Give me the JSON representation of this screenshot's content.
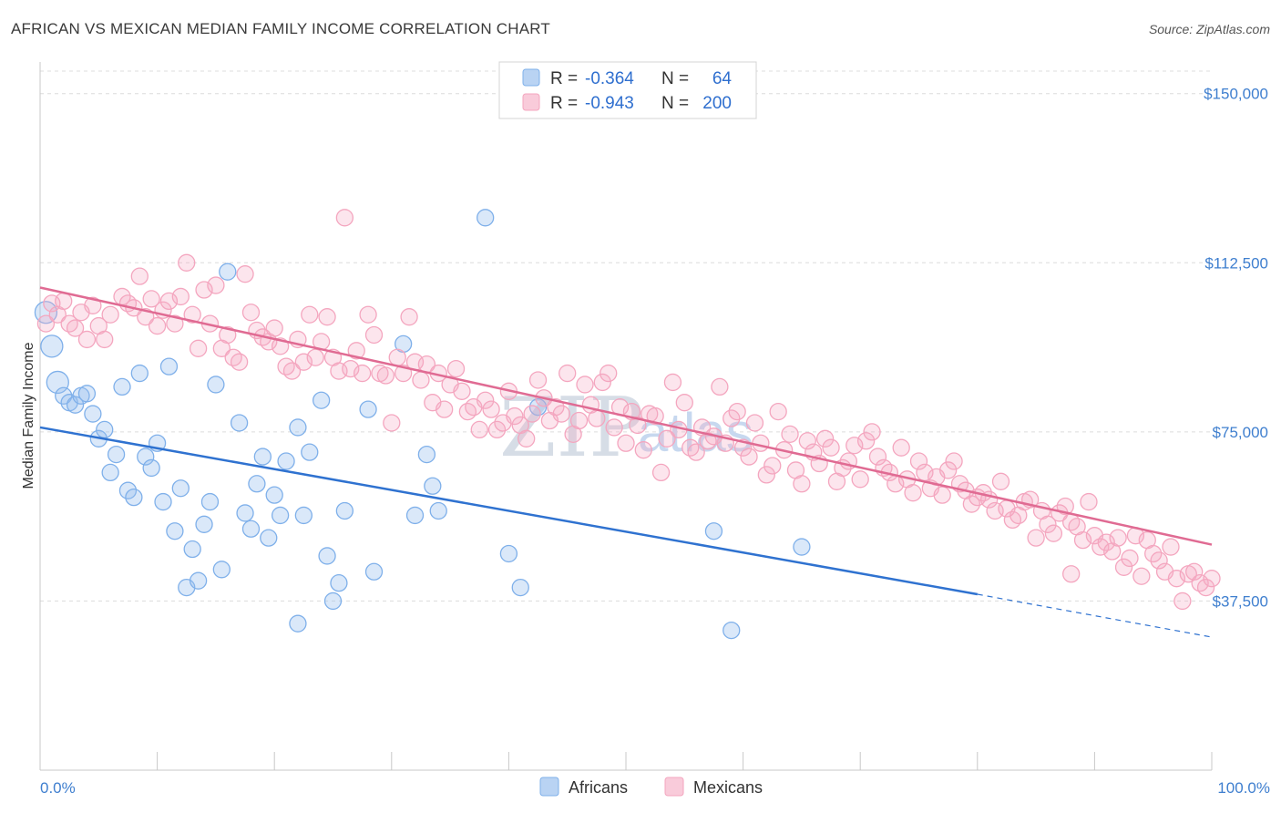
{
  "title": "AFRICAN VS MEXICAN MEDIAN FAMILY INCOME CORRELATION CHART",
  "source": "Source: ZipAtlas.com",
  "watermark": {
    "zip": "ZIP",
    "atlas": "atlas"
  },
  "legend": {
    "rows": [
      {
        "r_label": "R =",
        "r_value": "-0.364",
        "n_label": "N =",
        "n_value": "64",
        "color": "#7fb0ea"
      },
      {
        "r_label": "R =",
        "r_value": "-0.943",
        "n_label": "N =",
        "n_value": "200",
        "color": "#f4a6bf"
      }
    ]
  },
  "chart_data": {
    "type": "scatter",
    "xlabel": "",
    "ylabel": "Median Family Income",
    "xlim": [
      0,
      100
    ],
    "ylim": [
      0,
      155000
    ],
    "x_tick_labels": [
      "0.0%",
      "100.0%"
    ],
    "y_ticks": [
      37500,
      75000,
      112500,
      150000
    ],
    "y_tick_labels": [
      "$37,500",
      "$75,000",
      "$112,500",
      "$150,000"
    ],
    "grid": true,
    "legend_position": "top-center",
    "series": [
      {
        "name": "Africans",
        "color": "#7fb0ea",
        "line_color": "#2f72d0",
        "trend": {
          "x0": 0,
          "y0": 76000,
          "x1": 80,
          "y1": 39000,
          "dash_to_x": 100,
          "dash_to_y": 29500
        },
        "points": [
          [
            0.5,
            101500
          ],
          [
            1,
            94000
          ],
          [
            1.5,
            86000
          ],
          [
            2,
            83000
          ],
          [
            2.5,
            81500
          ],
          [
            3,
            81000
          ],
          [
            3.5,
            83000
          ],
          [
            4,
            83500
          ],
          [
            4.5,
            79000
          ],
          [
            5,
            73500
          ],
          [
            5.5,
            75500
          ],
          [
            6,
            66000
          ],
          [
            6.5,
            70000
          ],
          [
            7,
            85000
          ],
          [
            7.5,
            62000
          ],
          [
            8,
            60500
          ],
          [
            8.5,
            88000
          ],
          [
            9,
            69500
          ],
          [
            9.5,
            67000
          ],
          [
            10,
            72500
          ],
          [
            10.5,
            59500
          ],
          [
            11,
            89500
          ],
          [
            11.5,
            53000
          ],
          [
            12,
            62500
          ],
          [
            12.5,
            40500
          ],
          [
            13,
            49000
          ],
          [
            13.5,
            42000
          ],
          [
            14,
            54500
          ],
          [
            14.5,
            59500
          ],
          [
            15,
            85500
          ],
          [
            15.5,
            44500
          ],
          [
            16,
            110500
          ],
          [
            17,
            77000
          ],
          [
            17.5,
            57000
          ],
          [
            18,
            53500
          ],
          [
            18.5,
            63500
          ],
          [
            19,
            69500
          ],
          [
            19.5,
            51500
          ],
          [
            20,
            61000
          ],
          [
            20.5,
            56500
          ],
          [
            21,
            68500
          ],
          [
            22,
            76000
          ],
          [
            22.5,
            56500
          ],
          [
            23,
            70500
          ],
          [
            24,
            82000
          ],
          [
            24.5,
            47500
          ],
          [
            25,
            37500
          ],
          [
            25.5,
            41500
          ],
          [
            26,
            57500
          ],
          [
            28,
            80000
          ],
          [
            28.5,
            44000
          ],
          [
            31,
            94500
          ],
          [
            32,
            56500
          ],
          [
            33,
            70000
          ],
          [
            33.5,
            63000
          ],
          [
            34,
            57500
          ],
          [
            38,
            122500
          ],
          [
            40,
            48000
          ],
          [
            41,
            40500
          ],
          [
            42.5,
            80500
          ],
          [
            22,
            32500
          ],
          [
            57.5,
            53000
          ],
          [
            59,
            31000
          ],
          [
            65,
            49500
          ]
        ]
      },
      {
        "name": "Mexicans",
        "color": "#f4a6bf",
        "line_color": "#e06b93",
        "trend": {
          "x0": 0,
          "y0": 107000,
          "x1": 100,
          "y1": 50000
        },
        "points": [
          [
            0.5,
            99000
          ],
          [
            1,
            103500
          ],
          [
            1.5,
            101000
          ],
          [
            2,
            104000
          ],
          [
            2.5,
            99000
          ],
          [
            3,
            98000
          ],
          [
            3.5,
            101500
          ],
          [
            4,
            95500
          ],
          [
            4.5,
            103000
          ],
          [
            5,
            98500
          ],
          [
            5.5,
            95500
          ],
          [
            6,
            101000
          ],
          [
            7,
            105000
          ],
          [
            7.5,
            103500
          ],
          [
            8,
            102500
          ],
          [
            8.5,
            109500
          ],
          [
            9,
            100500
          ],
          [
            9.5,
            104500
          ],
          [
            10,
            98500
          ],
          [
            10.5,
            102000
          ],
          [
            11,
            104000
          ],
          [
            11.5,
            99000
          ],
          [
            12,
            105000
          ],
          [
            12.5,
            112500
          ],
          [
            13,
            101000
          ],
          [
            13.5,
            93500
          ],
          [
            14,
            106500
          ],
          [
            14.5,
            99000
          ],
          [
            15,
            107500
          ],
          [
            15.5,
            93500
          ],
          [
            16,
            96500
          ],
          [
            16.5,
            91500
          ],
          [
            17,
            90500
          ],
          [
            17.5,
            110000
          ],
          [
            18,
            101500
          ],
          [
            18.5,
            97500
          ],
          [
            19,
            96000
          ],
          [
            19.5,
            95000
          ],
          [
            20,
            98000
          ],
          [
            20.5,
            94000
          ],
          [
            21,
            89500
          ],
          [
            21.5,
            88500
          ],
          [
            22,
            95500
          ],
          [
            22.5,
            90500
          ],
          [
            23,
            101000
          ],
          [
            23.5,
            91500
          ],
          [
            24,
            95000
          ],
          [
            24.5,
            100500
          ],
          [
            25,
            91500
          ],
          [
            25.5,
            88500
          ],
          [
            26,
            122500
          ],
          [
            26.5,
            89000
          ],
          [
            27,
            93000
          ],
          [
            27.5,
            88000
          ],
          [
            28,
            101000
          ],
          [
            28.5,
            96500
          ],
          [
            29,
            88000
          ],
          [
            29.5,
            87500
          ],
          [
            30,
            77000
          ],
          [
            30.5,
            91500
          ],
          [
            31,
            88000
          ],
          [
            31.5,
            100500
          ],
          [
            32,
            90500
          ],
          [
            32.5,
            86500
          ],
          [
            33,
            90000
          ],
          [
            33.5,
            81500
          ],
          [
            34,
            88000
          ],
          [
            34.5,
            80000
          ],
          [
            35,
            85500
          ],
          [
            35.5,
            89000
          ],
          [
            36,
            84000
          ],
          [
            36.5,
            79500
          ],
          [
            37,
            80500
          ],
          [
            37.5,
            75500
          ],
          [
            38,
            82000
          ],
          [
            38.5,
            80000
          ],
          [
            39,
            75500
          ],
          [
            39.5,
            77000
          ],
          [
            40,
            84000
          ],
          [
            40.5,
            78500
          ],
          [
            41,
            76500
          ],
          [
            41.5,
            73500
          ],
          [
            42,
            79000
          ],
          [
            42.5,
            86500
          ],
          [
            43,
            82500
          ],
          [
            43.5,
            77500
          ],
          [
            44,
            80500
          ],
          [
            44.5,
            79000
          ],
          [
            45,
            88000
          ],
          [
            45.5,
            74500
          ],
          [
            46,
            77500
          ],
          [
            46.5,
            85500
          ],
          [
            47,
            81000
          ],
          [
            47.5,
            78000
          ],
          [
            48,
            86000
          ],
          [
            48.5,
            88000
          ],
          [
            49,
            76000
          ],
          [
            49.5,
            80500
          ],
          [
            50,
            72500
          ],
          [
            50.5,
            79500
          ],
          [
            51,
            76500
          ],
          [
            51.5,
            71000
          ],
          [
            52,
            79000
          ],
          [
            52.5,
            78500
          ],
          [
            53,
            66000
          ],
          [
            53.5,
            73500
          ],
          [
            54,
            86000
          ],
          [
            54.5,
            75500
          ],
          [
            55,
            81500
          ],
          [
            55.5,
            71500
          ],
          [
            56,
            70500
          ],
          [
            56.5,
            76000
          ],
          [
            57,
            73000
          ],
          [
            57.5,
            74000
          ],
          [
            58,
            85000
          ],
          [
            58.5,
            72500
          ],
          [
            59,
            78000
          ],
          [
            59.5,
            79500
          ],
          [
            60,
            71500
          ],
          [
            60.5,
            69500
          ],
          [
            61,
            77000
          ],
          [
            61.5,
            72500
          ],
          [
            62,
            65500
          ],
          [
            62.5,
            67500
          ],
          [
            63,
            79500
          ],
          [
            63.5,
            71000
          ],
          [
            64,
            74500
          ],
          [
            64.5,
            66500
          ],
          [
            65,
            63500
          ],
          [
            65.5,
            73000
          ],
          [
            66,
            70500
          ],
          [
            66.5,
            68000
          ],
          [
            67,
            73500
          ],
          [
            67.5,
            71500
          ],
          [
            68,
            64000
          ],
          [
            68.5,
            67000
          ],
          [
            69,
            68500
          ],
          [
            69.5,
            72000
          ],
          [
            70,
            64500
          ],
          [
            70.5,
            73000
          ],
          [
            71,
            75000
          ],
          [
            71.5,
            69500
          ],
          [
            72,
            67000
          ],
          [
            72.5,
            66000
          ],
          [
            73,
            63500
          ],
          [
            73.5,
            71500
          ],
          [
            74,
            64500
          ],
          [
            74.5,
            61500
          ],
          [
            75,
            68500
          ],
          [
            75.5,
            66000
          ],
          [
            76,
            62500
          ],
          [
            76.5,
            65000
          ],
          [
            77,
            61000
          ],
          [
            77.5,
            66500
          ],
          [
            78,
            68500
          ],
          [
            78.5,
            63500
          ],
          [
            79,
            62000
          ],
          [
            79.5,
            59000
          ],
          [
            80,
            60500
          ],
          [
            80.5,
            61500
          ],
          [
            81,
            60000
          ],
          [
            81.5,
            57500
          ],
          [
            82,
            64000
          ],
          [
            82.5,
            58000
          ],
          [
            83,
            55500
          ],
          [
            83.5,
            56500
          ],
          [
            84,
            59500
          ],
          [
            84.5,
            60000
          ],
          [
            85,
            51500
          ],
          [
            85.5,
            57500
          ],
          [
            86,
            54500
          ],
          [
            86.5,
            52500
          ],
          [
            87,
            57000
          ],
          [
            87.5,
            58500
          ],
          [
            88,
            55000
          ],
          [
            88.5,
            54000
          ],
          [
            89,
            51000
          ],
          [
            89.5,
            59500
          ],
          [
            90,
            52000
          ],
          [
            90.5,
            49500
          ],
          [
            91,
            50500
          ],
          [
            91.5,
            48500
          ],
          [
            92,
            51500
          ],
          [
            92.5,
            45000
          ],
          [
            93,
            47000
          ],
          [
            93.5,
            52000
          ],
          [
            94,
            43000
          ],
          [
            94.5,
            51000
          ],
          [
            95,
            48000
          ],
          [
            95.5,
            46500
          ],
          [
            96,
            44000
          ],
          [
            96.5,
            49500
          ],
          [
            97,
            42500
          ],
          [
            97.5,
            37500
          ],
          [
            98,
            43500
          ],
          [
            98.5,
            44000
          ],
          [
            99,
            41500
          ],
          [
            99.5,
            40500
          ],
          [
            100,
            42500
          ],
          [
            88,
            43500
          ]
        ]
      }
    ]
  }
}
